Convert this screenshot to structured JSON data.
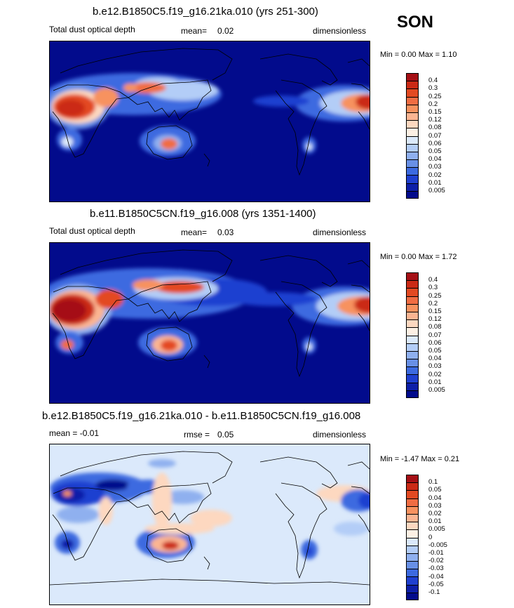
{
  "season": "SON",
  "panels": [
    {
      "title": "b.e12.B1850C5.f19_g16.21ka.010 (yrs 251-300)",
      "left": "Total dust optical depth",
      "mean_label": "mean=",
      "mean_value": "0.02",
      "units": "dimensionless",
      "minmax": "Min =   0.00 Max =   1.10",
      "levels": [
        "0.4",
        "0.3",
        "0.25",
        "0.2",
        "0.15",
        "0.12",
        "0.08",
        "0.07",
        "0.06",
        "0.05",
        "0.04",
        "0.03",
        "0.02",
        "0.01",
        "0.005"
      ],
      "colors": [
        "#a50f15",
        "#cb2a16",
        "#e34a22",
        "#f06d43",
        "#f7925f",
        "#fbb592",
        "#fdd8c0",
        "#fdf0e4",
        "#dbe9fb",
        "#b3cdf7",
        "#8fb0ef",
        "#6890e6",
        "#3c6ae0",
        "#1f40d0",
        "#0d1fa8",
        "#020b8c"
      ]
    },
    {
      "title": "b.e11.B1850C5CN.f19_g16.008 (yrs 1351-1400)",
      "left": "Total dust optical depth",
      "mean_label": "mean=",
      "mean_value": "0.03",
      "units": "dimensionless",
      "minmax": "Min =   0.00 Max =   1.72",
      "levels": [
        "0.4",
        "0.3",
        "0.25",
        "0.2",
        "0.15",
        "0.12",
        "0.08",
        "0.07",
        "0.06",
        "0.05",
        "0.04",
        "0.03",
        "0.02",
        "0.01",
        "0.005"
      ],
      "colors": [
        "#a50f15",
        "#cb2a16",
        "#e34a22",
        "#f06d43",
        "#f7925f",
        "#fbb592",
        "#fdd8c0",
        "#fdf0e4",
        "#dbe9fb",
        "#b3cdf7",
        "#8fb0ef",
        "#6890e6",
        "#3c6ae0",
        "#1f40d0",
        "#0d1fa8",
        "#020b8c"
      ]
    },
    {
      "title": "b.e12.B1850C5.f19_g16.21ka.010 - b.e11.B1850C5CN.f19_g16.008",
      "left": "mean =   -0.01",
      "rmse_label": "rmse =",
      "rmse_value": "0.05",
      "units": "dimensionless",
      "minmax": "Min =  -1.47 Max =   0.21",
      "levels": [
        "0.1",
        "0.05",
        "0.04",
        "0.03",
        "0.02",
        "0.01",
        "0.005",
        "0",
        "-0.005",
        "-0.01",
        "-0.02",
        "-0.03",
        "-0.04",
        "-0.05",
        "-0.1"
      ],
      "colors": [
        "#a50f15",
        "#cb2a16",
        "#e34a22",
        "#f06d43",
        "#f7925f",
        "#fbb592",
        "#fdd8c0",
        "#fdf0e4",
        "#dbe9fb",
        "#b3cdf7",
        "#8fb0ef",
        "#6890e6",
        "#3c6ae0",
        "#1f40d0",
        "#0d1fa8",
        "#020b8c"
      ]
    }
  ]
}
